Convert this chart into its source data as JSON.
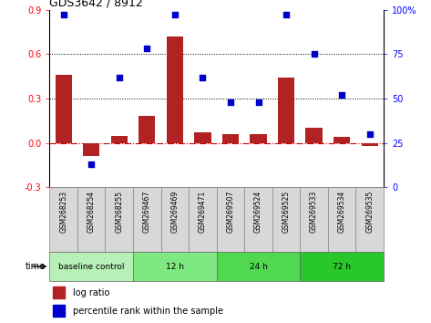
{
  "title": "GDS3642 / 8912",
  "samples": [
    "GSM268253",
    "GSM268254",
    "GSM268255",
    "GSM269467",
    "GSM269469",
    "GSM269471",
    "GSM269507",
    "GSM269524",
    "GSM269525",
    "GSM269533",
    "GSM269534",
    "GSM269535"
  ],
  "log_ratio": [
    0.46,
    -0.09,
    0.05,
    0.18,
    0.72,
    0.07,
    0.06,
    0.06,
    0.44,
    0.1,
    0.04,
    -0.02
  ],
  "percentile_rank": [
    97,
    13,
    62,
    78,
    97,
    62,
    48,
    48,
    97,
    75,
    52,
    30
  ],
  "bar_color": "#b22222",
  "dot_color": "#0000cc",
  "zero_line_color": "#cc0000",
  "yticks_left": [
    -0.3,
    0.0,
    0.3,
    0.6,
    0.9
  ],
  "yticks_right": [
    0,
    25,
    50,
    75,
    100
  ],
  "dotted_line_y": [
    0.3,
    0.6
  ],
  "groups": [
    {
      "label": "baseline control",
      "start": 0,
      "end": 3,
      "color": "#b8f0b8"
    },
    {
      "label": "12 h",
      "start": 3,
      "end": 6,
      "color": "#80e880"
    },
    {
      "label": "24 h",
      "start": 6,
      "end": 9,
      "color": "#50d850"
    },
    {
      "label": "72 h",
      "start": 9,
      "end": 12,
      "color": "#28c828"
    }
  ],
  "legend_log_ratio": "log ratio",
  "legend_percentile": "percentile rank within the sample",
  "time_label": "time",
  "sample_bg": "#d8d8d8",
  "plot_bg": "#ffffff"
}
